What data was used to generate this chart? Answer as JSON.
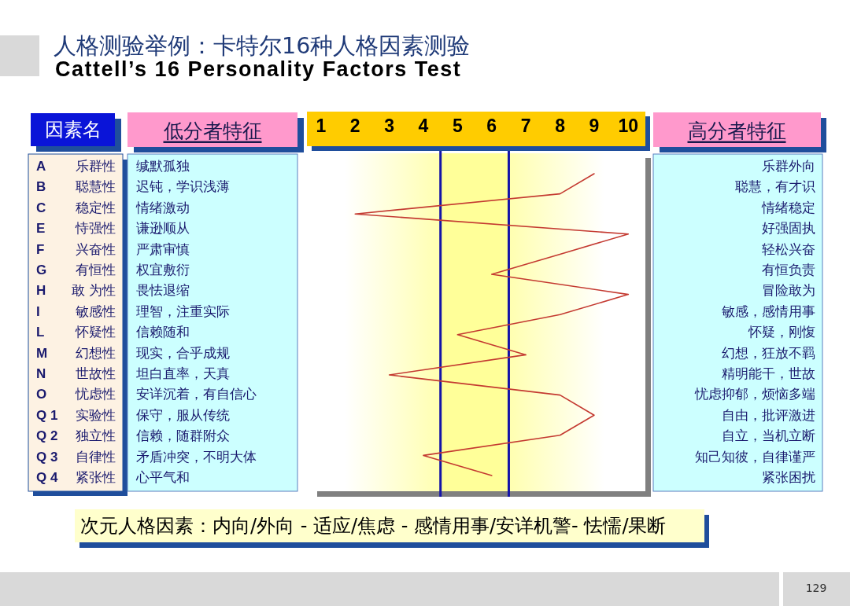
{
  "chart_data": {
    "type": "line",
    "orientation": "horizontal",
    "title": "人格测验举例：卡特尔16种人格因素测验",
    "subtitle": "Cattell’s 16 Personality Factors Test",
    "categories": [
      "A 乐群性",
      "B 聪慧性",
      "C 稳定性",
      "E 恃强性",
      "F 兴奋性",
      "G 有恒性",
      "H 敢 为性",
      "I 敏感性",
      "L 怀疑性",
      "M 幻想性",
      "N 世故性",
      "O 忧虑性",
      "Q 1 实验性",
      "Q 2 独立性",
      "Q 3 自律性",
      "Q 4 紧张性"
    ],
    "series": [
      {
        "color": "#c43a31",
        "values": [
          9,
          8,
          2,
          10,
          8,
          6,
          10,
          8,
          5,
          7,
          3,
          8,
          9,
          8,
          4,
          6
        ]
      }
    ],
    "xlim": [
      0.75,
      10.5
    ],
    "xticks": [
      1,
      2,
      3,
      4,
      5,
      6,
      7,
      8,
      9,
      10
    ],
    "ref_lines": [
      {
        "axis": "x",
        "value": 4.5,
        "color": "#1414a8"
      },
      {
        "axis": "x",
        "value": 6.5,
        "color": "#1414a8"
      }
    ],
    "bands": [
      {
        "axis": "x",
        "from": 4.5,
        "to": 6.5,
        "color": "#ffff99"
      }
    ],
    "annotations": [
      "因素名",
      "低分者特征",
      "高分者特征",
      "缄默孤独",
      "迟钝，学识浅薄",
      "情绪激动",
      "谦逊顺从",
      "严肃审慎",
      "权宜敷衍",
      "畏怯退缩",
      "理智，注重实际",
      "信赖随和",
      "现实，合乎成规",
      "坦白直率，天真",
      "安详沉着，有自信心",
      "保守，服从传统",
      "信赖，随群附众",
      "矛盾冲突，不明大体",
      "心平气和",
      "乐群外向",
      "聪慧，有才识",
      "情绪稳定",
      "好强固执",
      "轻松兴奋",
      "有恒负责",
      "冒险敢为",
      "敏感，感情用事",
      "怀疑，刚愎",
      "幻想，狂放不羁",
      "精明能干，世故",
      "忧虑抑郁，烦恼多端",
      "自由，批评激进",
      "自立，当机立断",
      "知己知彼，自律谨严",
      "紧张困扰",
      "次元人格因素：内向/外向 - 适应/焦虑 - 感情用事/安详机警- 怯懦/果断",
      "129"
    ]
  }
}
